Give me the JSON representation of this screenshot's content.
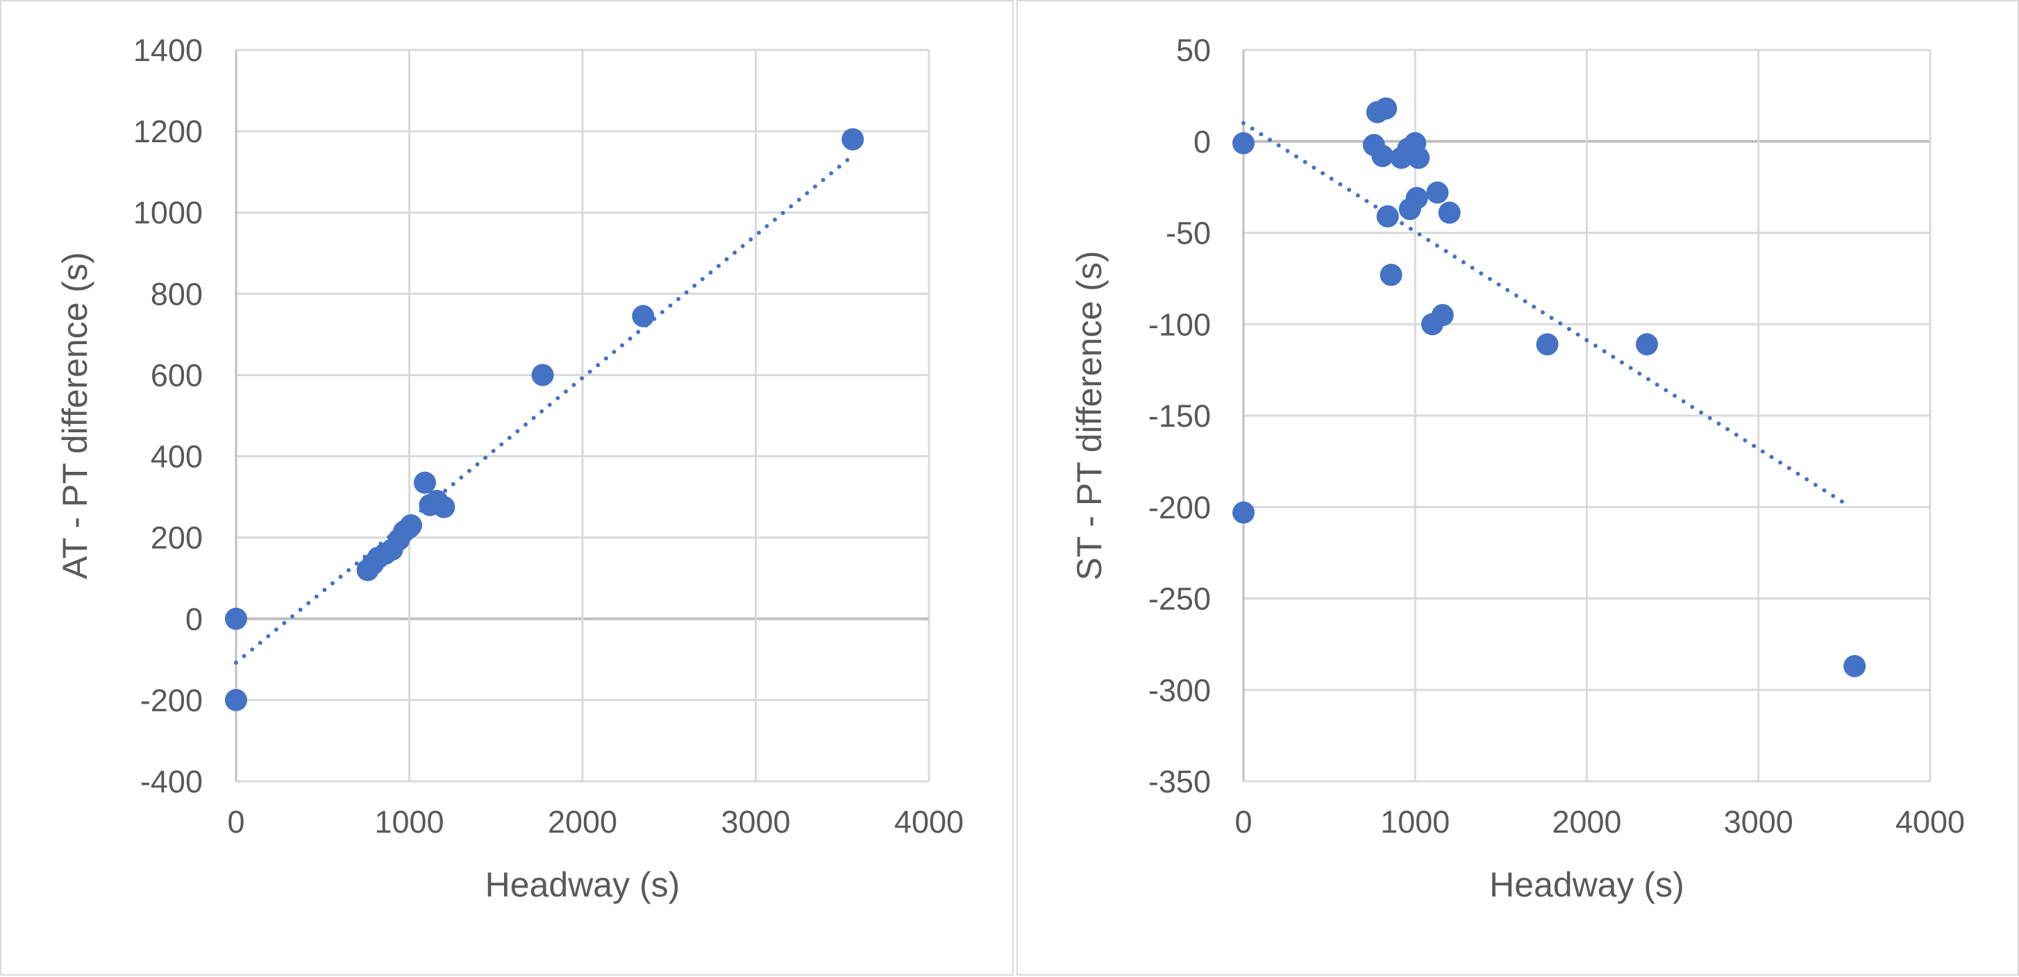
{
  "colors": {
    "point": "#4472C4",
    "trendline": "#4472C4",
    "grid": "#d9d9d9",
    "zero_line": "#bfbfbf",
    "text": "#595959"
  },
  "chart_data": [
    {
      "type": "scatter",
      "title": "",
      "xlabel": "Headway (s)",
      "ylabel": "AT - PT difference (s)",
      "xlim": [
        0,
        4000
      ],
      "ylim": [
        -400,
        1400
      ],
      "x_ticks": [
        0,
        1000,
        2000,
        3000,
        4000
      ],
      "y_ticks": [
        -400,
        -200,
        0,
        200,
        400,
        600,
        800,
        1000,
        1200,
        1400
      ],
      "grid": true,
      "legend": "none",
      "series": [
        {
          "points": [
            [
              0,
              0
            ],
            [
              0,
              -200
            ],
            [
              760,
              120
            ],
            [
              790,
              135
            ],
            [
              820,
              150
            ],
            [
              860,
              160
            ],
            [
              900,
              170
            ],
            [
              940,
              195
            ],
            [
              970,
              215
            ],
            [
              1000,
              225
            ],
            [
              1010,
              230
            ],
            [
              1090,
              335
            ],
            [
              1120,
              280
            ],
            [
              1160,
              290
            ],
            [
              1200,
              275
            ],
            [
              1770,
              600
            ],
            [
              2350,
              745
            ],
            [
              3560,
              1180
            ]
          ]
        }
      ],
      "trendline": {
        "style": "dotted",
        "type": "linear",
        "x": [
          0,
          3560
        ],
        "y": [
          -108,
          1140
        ]
      }
    },
    {
      "type": "scatter",
      "title": "",
      "xlabel": "Headway (s)",
      "ylabel": "ST - PT difference (s)",
      "xlim": [
        0,
        4000
      ],
      "ylim": [
        -350,
        50
      ],
      "x_ticks": [
        0,
        1000,
        2000,
        3000,
        4000
      ],
      "y_ticks": [
        -350,
        -300,
        -250,
        -200,
        -150,
        -100,
        -50,
        0,
        50
      ],
      "grid": true,
      "legend": "none",
      "series": [
        {
          "points": [
            [
              0,
              -1
            ],
            [
              0,
              -203
            ],
            [
              760,
              -2
            ],
            [
              780,
              16
            ],
            [
              810,
              -8
            ],
            [
              830,
              18
            ],
            [
              840,
              -41
            ],
            [
              860,
              -73
            ],
            [
              920,
              -9
            ],
            [
              960,
              -4
            ],
            [
              970,
              -37
            ],
            [
              1000,
              -1
            ],
            [
              1010,
              -31
            ],
            [
              1020,
              -9
            ],
            [
              1100,
              -100
            ],
            [
              1130,
              -28
            ],
            [
              1160,
              -95
            ],
            [
              1200,
              -39
            ],
            [
              1770,
              -111
            ],
            [
              2350,
              -111
            ],
            [
              3560,
              -287
            ]
          ]
        }
      ],
      "trendline": {
        "style": "dotted",
        "type": "linear",
        "x": [
          0,
          3520
        ],
        "y": [
          10,
          -199
        ]
      }
    }
  ]
}
